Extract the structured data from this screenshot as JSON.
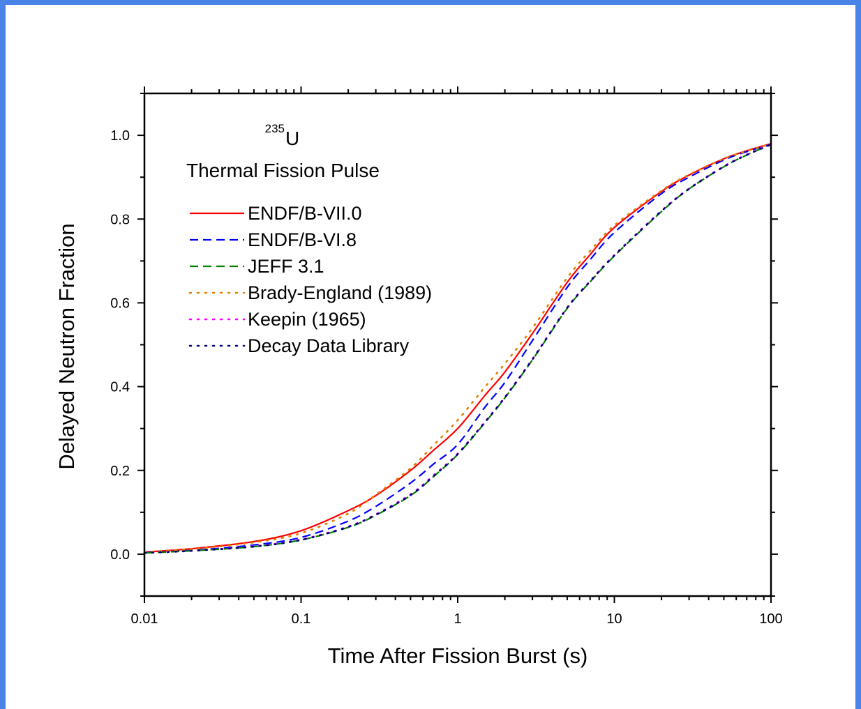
{
  "colors": {
    "frame": "#4a84e8",
    "axis": "#000000",
    "background": "#ffffff"
  },
  "chart_data": {
    "type": "line",
    "title": "",
    "xlabel": "Time After Fission Burst (s)",
    "ylabel": "Delayed Neutron Fraction",
    "xscale": "log",
    "xlim": [
      0.01,
      100
    ],
    "ylim": [
      -0.1,
      1.1
    ],
    "grid": false,
    "x_ticks": [
      "0.01",
      "0.1",
      "1",
      "10",
      "100"
    ],
    "y_ticks": [
      "0.0",
      "0.2",
      "0.4",
      "0.6",
      "0.8",
      "1.0"
    ],
    "annotations": {
      "isotope_mass": "235",
      "isotope_symbol": "U",
      "subtitle": "Thermal Fission Pulse"
    },
    "legend_position": "upper-left",
    "x": [
      0.01,
      0.02,
      0.05,
      0.1,
      0.2,
      0.3,
      0.5,
      0.7,
      1,
      1.5,
      2,
      3,
      5,
      7,
      10,
      20,
      30,
      50,
      70,
      100
    ],
    "series": [
      {
        "name": "ENDF/B-VII.0",
        "color": "#ff0000",
        "dash": "solid",
        "values": [
          0.005,
          0.013,
          0.03,
          0.056,
          0.104,
          0.14,
          0.2,
          0.248,
          0.3,
          0.38,
          0.435,
          0.527,
          0.649,
          0.715,
          0.78,
          0.866,
          0.905,
          0.944,
          0.963,
          0.98
        ]
      },
      {
        "name": "ENDF/B-VI.8",
        "color": "#0000ff",
        "dash": "dashed",
        "values": [
          0.004,
          0.009,
          0.022,
          0.04,
          0.079,
          0.114,
          0.17,
          0.215,
          0.262,
          0.352,
          0.41,
          0.51,
          0.637,
          0.703,
          0.768,
          0.861,
          0.9,
          0.941,
          0.961,
          0.978
        ]
      },
      {
        "name": "JEFF 3.1",
        "color": "#008000",
        "dash": "dashed",
        "values": [
          0.003,
          0.008,
          0.018,
          0.034,
          0.064,
          0.093,
          0.14,
          0.185,
          0.238,
          0.315,
          0.373,
          0.464,
          0.587,
          0.65,
          0.712,
          0.818,
          0.872,
          0.925,
          0.953,
          0.978
        ]
      },
      {
        "name": "Brady-England (1989)",
        "color": "#e08000",
        "dash": "dotted",
        "values": [
          0.005,
          0.012,
          0.028,
          0.05,
          0.097,
          0.142,
          0.205,
          0.26,
          0.32,
          0.4,
          0.455,
          0.54,
          0.66,
          0.724,
          0.785,
          0.868,
          0.906,
          0.944,
          0.962,
          0.98
        ]
      },
      {
        "name": "Keepin (1965)",
        "color": "#ff00ff",
        "dash": "dotted",
        "values": [
          0.003,
          0.008,
          0.019,
          0.035,
          0.066,
          0.095,
          0.143,
          0.188,
          0.24,
          0.317,
          0.375,
          0.466,
          0.589,
          0.652,
          0.714,
          0.82,
          0.873,
          0.926,
          0.954,
          0.978
        ]
      },
      {
        "name": "Decay Data Library",
        "color": "#000080",
        "dash": "dotted",
        "values": [
          0.003,
          0.008,
          0.018,
          0.034,
          0.065,
          0.094,
          0.141,
          0.186,
          0.239,
          0.316,
          0.374,
          0.465,
          0.588,
          0.651,
          0.713,
          0.819,
          0.872,
          0.925,
          0.953,
          0.978
        ]
      }
    ]
  }
}
